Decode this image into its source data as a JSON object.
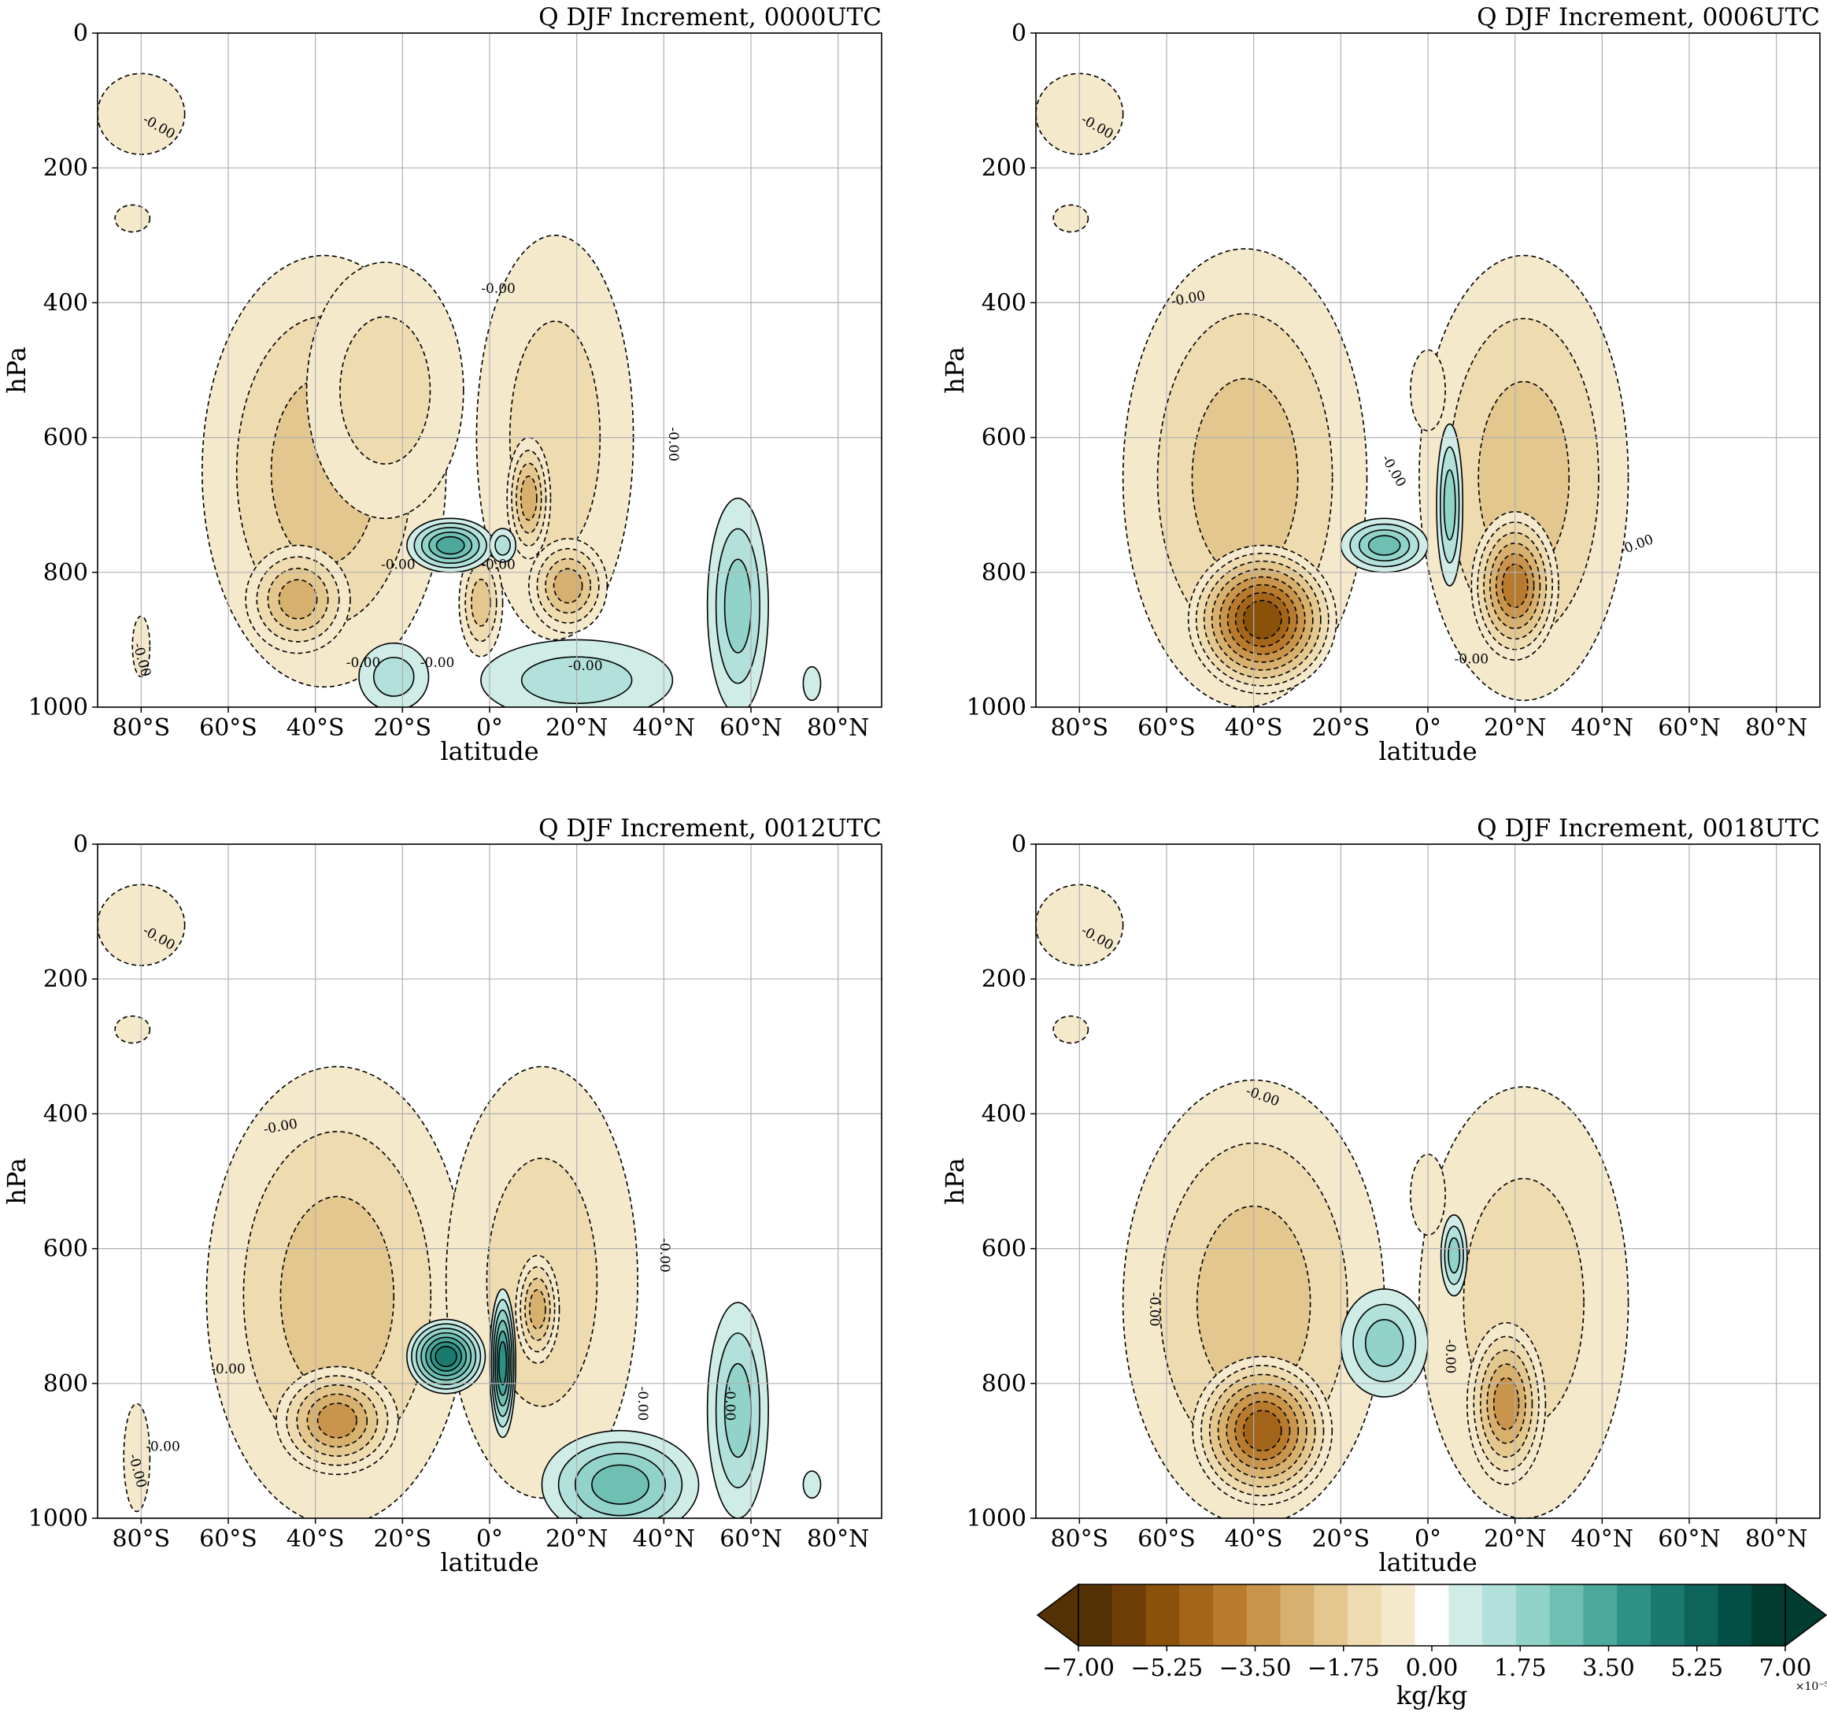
{
  "chart_data": {
    "type": "contourf",
    "variable": "Q",
    "season": "DJF",
    "colorbar": {
      "label": "kg/kg",
      "scale_note": "×10⁻⁵",
      "min": -7.0,
      "max": 7.0,
      "extend": "both",
      "tick_values": [
        -7.0,
        -5.25,
        -3.5,
        -1.75,
        0.0,
        1.75,
        3.5,
        5.25,
        7.0
      ],
      "tick_labels": [
        "−7.00",
        "−5.25",
        "−3.50",
        "−1.75",
        "0.00",
        "1.75",
        "3.50",
        "5.25",
        "7.00"
      ],
      "colors": [
        "#543005",
        "#6f3e08",
        "#8a510b",
        "#a3651a",
        "#b87b2e",
        "#c9944c",
        "#d8b06e",
        "#e4c78f",
        "#eedbb0",
        "#f5e9cc",
        "#ffffff",
        "#cfece7",
        "#b1e1da",
        "#92d3c9",
        "#6fbfb3",
        "#4ca99c",
        "#2f9185",
        "#1b7a6f",
        "#0c645a",
        "#034f45",
        "#003c30"
      ]
    },
    "x_axis": {
      "label": "latitude",
      "min": -90,
      "max": 90,
      "tick_values": [
        -80,
        -60,
        -40,
        -20,
        0,
        20,
        40,
        60,
        80
      ],
      "tick_labels": [
        "80°S",
        "60°S",
        "40°S",
        "20°S",
        "0°",
        "20°N",
        "40°N",
        "60°N",
        "80°N"
      ]
    },
    "y_axis": {
      "label": "hPa",
      "min": 0,
      "max": 1000,
      "inverted": true,
      "tick_values": [
        0,
        200,
        400,
        600,
        800,
        1000
      ],
      "tick_labels": [
        "0",
        "200",
        "400",
        "600",
        "800",
        "1000"
      ]
    },
    "grid": true,
    "panels": [
      {
        "title": "Q DJF Increment, 0000UTC",
        "time": "0000UTC",
        "contour_labels": [
          {
            "text": "-0.00",
            "lat": -76,
            "p": 140,
            "rot": 30
          },
          {
            "text": "-0.00",
            "lat": 2,
            "p": 380,
            "rot": 0
          },
          {
            "text": "-0.00",
            "lat": -80,
            "p": 930,
            "rot": 75
          },
          {
            "text": "-0.00",
            "lat": 42,
            "p": 610,
            "rot": 90
          },
          {
            "text": "-0.00",
            "lat": -21,
            "p": 790,
            "rot": 0
          },
          {
            "text": "-0.00",
            "lat": -12,
            "p": 935,
            "rot": 0
          },
          {
            "text": "-0.00",
            "lat": -29,
            "p": 935,
            "rot": 0
          },
          {
            "text": "-0.00",
            "lat": 2,
            "p": 790,
            "rot": 0
          },
          {
            "text": "-0.00",
            "lat": 22,
            "p": 940,
            "rot": 0
          }
        ],
        "features": [
          {
            "lat": -80,
            "p": 120,
            "rx": 10,
            "ry": 60,
            "v": -1.0
          },
          {
            "lat": -82,
            "p": 275,
            "rx": 4,
            "ry": 20,
            "v": -0.6
          },
          {
            "lat": -80,
            "p": 910,
            "rx": 2,
            "ry": 45,
            "v": -0.6
          },
          {
            "lat": -38,
            "p": 650,
            "rx": 28,
            "ry": 320,
            "v": -2.2
          },
          {
            "lat": -44,
            "p": 840,
            "rx": 12,
            "ry": 80,
            "v": -2.6
          },
          {
            "lat": -24,
            "p": 530,
            "rx": 18,
            "ry": 190,
            "v": -1.4
          },
          {
            "lat": 15,
            "p": 600,
            "rx": 18,
            "ry": 300,
            "v": -1.4
          },
          {
            "lat": 9,
            "p": 690,
            "rx": 5,
            "ry": 90,
            "v": -2.6
          },
          {
            "lat": 18,
            "p": 820,
            "rx": 9,
            "ry": 70,
            "v": -2.8
          },
          {
            "lat": -2,
            "p": 845,
            "rx": 5,
            "ry": 80,
            "v": -2.0
          },
          {
            "lat": -9,
            "p": 760,
            "rx": 10,
            "ry": 40,
            "v": 3.2
          },
          {
            "lat": 3,
            "p": 760,
            "rx": 3,
            "ry": 25,
            "v": 1.6
          },
          {
            "lat": 57,
            "p": 850,
            "rx": 7,
            "ry": 160,
            "v": 2.2
          },
          {
            "lat": 20,
            "p": 960,
            "rx": 22,
            "ry": 60,
            "v": 1.5
          },
          {
            "lat": 74,
            "p": 965,
            "rx": 2,
            "ry": 25,
            "v": 0.8
          },
          {
            "lat": -22,
            "p": 955,
            "rx": 8,
            "ry": 50,
            "v": 1.3
          }
        ]
      },
      {
        "title": "Q DJF Increment, 0006UTC",
        "time": "0006UTC",
        "contour_labels": [
          {
            "text": "-0.00",
            "lat": -76,
            "p": 140,
            "rot": 30
          },
          {
            "text": "-0.00",
            "lat": -55,
            "p": 395,
            "rot": -10
          },
          {
            "text": "-0.00",
            "lat": 48,
            "p": 760,
            "rot": -20
          },
          {
            "text": "-0.00",
            "lat": -8,
            "p": 650,
            "rot": 60
          },
          {
            "text": "-0.00",
            "lat": 10,
            "p": 930,
            "rot": 0
          }
        ],
        "features": [
          {
            "lat": -80,
            "p": 120,
            "rx": 10,
            "ry": 60,
            "v": -1.0
          },
          {
            "lat": -82,
            "p": 275,
            "rx": 4,
            "ry": 20,
            "v": -0.6
          },
          {
            "lat": -42,
            "p": 660,
            "rx": 28,
            "ry": 340,
            "v": -2.0
          },
          {
            "lat": -38,
            "p": 870,
            "rx": 17,
            "ry": 110,
            "v": -5.8
          },
          {
            "lat": 22,
            "p": 660,
            "rx": 24,
            "ry": 330,
            "v": -1.8
          },
          {
            "lat": 20,
            "p": 820,
            "rx": 10,
            "ry": 110,
            "v": -4.4
          },
          {
            "lat": -10,
            "p": 760,
            "rx": 10,
            "ry": 40,
            "v": 2.6
          },
          {
            "lat": 5,
            "p": 700,
            "rx": 3,
            "ry": 120,
            "v": 2.0
          },
          {
            "lat": 0,
            "p": 530,
            "rx": 4,
            "ry": 60,
            "v": -0.8
          }
        ]
      },
      {
        "title": "Q DJF Increment, 0012UTC",
        "time": "0012UTC",
        "contour_labels": [
          {
            "text": "-0.00",
            "lat": -76,
            "p": 140,
            "rot": 30
          },
          {
            "text": "-0.00",
            "lat": -48,
            "p": 420,
            "rot": -10
          },
          {
            "text": "-0.00",
            "lat": -60,
            "p": 780,
            "rot": 0
          },
          {
            "text": "-0.00",
            "lat": -81,
            "p": 930,
            "rot": 75
          },
          {
            "text": "-0.00",
            "lat": 40,
            "p": 610,
            "rot": 90
          },
          {
            "text": "-0.00",
            "lat": 35,
            "p": 830,
            "rot": 90
          },
          {
            "text": "-0.00",
            "lat": 55,
            "p": 830,
            "rot": 90
          },
          {
            "text": "-0.00",
            "lat": -75,
            "p": 895,
            "rot": 0
          }
        ],
        "features": [
          {
            "lat": -80,
            "p": 120,
            "rx": 10,
            "ry": 60,
            "v": -1.0
          },
          {
            "lat": -82,
            "p": 275,
            "rx": 4,
            "ry": 20,
            "v": -0.6
          },
          {
            "lat": -35,
            "p": 670,
            "rx": 30,
            "ry": 340,
            "v": -2.2
          },
          {
            "lat": -35,
            "p": 855,
            "rx": 14,
            "ry": 80,
            "v": -3.6
          },
          {
            "lat": 12,
            "p": 650,
            "rx": 22,
            "ry": 320,
            "v": -1.4
          },
          {
            "lat": 11,
            "p": 690,
            "rx": 5,
            "ry": 80,
            "v": -2.6
          },
          {
            "lat": -10,
            "p": 760,
            "rx": 9,
            "ry": 55,
            "v": 4.6
          },
          {
            "lat": 3,
            "p": 770,
            "rx": 3,
            "ry": 110,
            "v": 4.4
          },
          {
            "lat": 30,
            "p": 950,
            "rx": 18,
            "ry": 80,
            "v": 2.8
          },
          {
            "lat": 57,
            "p": 840,
            "rx": 7,
            "ry": 160,
            "v": 2.0
          },
          {
            "lat": -81,
            "p": 910,
            "rx": 3,
            "ry": 80,
            "v": -0.6
          },
          {
            "lat": 74,
            "p": 950,
            "rx": 2,
            "ry": 20,
            "v": 0.8
          }
        ]
      },
      {
        "title": "Q DJF Increment, 0018UTC",
        "time": "0018UTC",
        "contour_labels": [
          {
            "text": "-0.00",
            "lat": -76,
            "p": 140,
            "rot": 30
          },
          {
            "text": "-0.00",
            "lat": -38,
            "p": 375,
            "rot": 20
          },
          {
            "text": "-0.00",
            "lat": -63,
            "p": 690,
            "rot": 90
          },
          {
            "text": "-0.00",
            "lat": 5,
            "p": 760,
            "rot": 90
          }
        ],
        "features": [
          {
            "lat": -80,
            "p": 120,
            "rx": 10,
            "ry": 60,
            "v": -1.0
          },
          {
            "lat": -82,
            "p": 275,
            "rx": 4,
            "ry": 20,
            "v": -0.6
          },
          {
            "lat": -40,
            "p": 680,
            "rx": 30,
            "ry": 330,
            "v": -2.0
          },
          {
            "lat": -38,
            "p": 870,
            "rx": 16,
            "ry": 110,
            "v": -4.6
          },
          {
            "lat": 22,
            "p": 680,
            "rx": 24,
            "ry": 320,
            "v": -1.6
          },
          {
            "lat": 18,
            "p": 830,
            "rx": 9,
            "ry": 120,
            "v": -3.6
          },
          {
            "lat": -10,
            "p": 740,
            "rx": 10,
            "ry": 80,
            "v": 2.4
          },
          {
            "lat": 6,
            "p": 610,
            "rx": 3,
            "ry": 60,
            "v": 2.0
          },
          {
            "lat": 0,
            "p": 520,
            "rx": 4,
            "ry": 60,
            "v": -0.8
          }
        ]
      }
    ]
  }
}
